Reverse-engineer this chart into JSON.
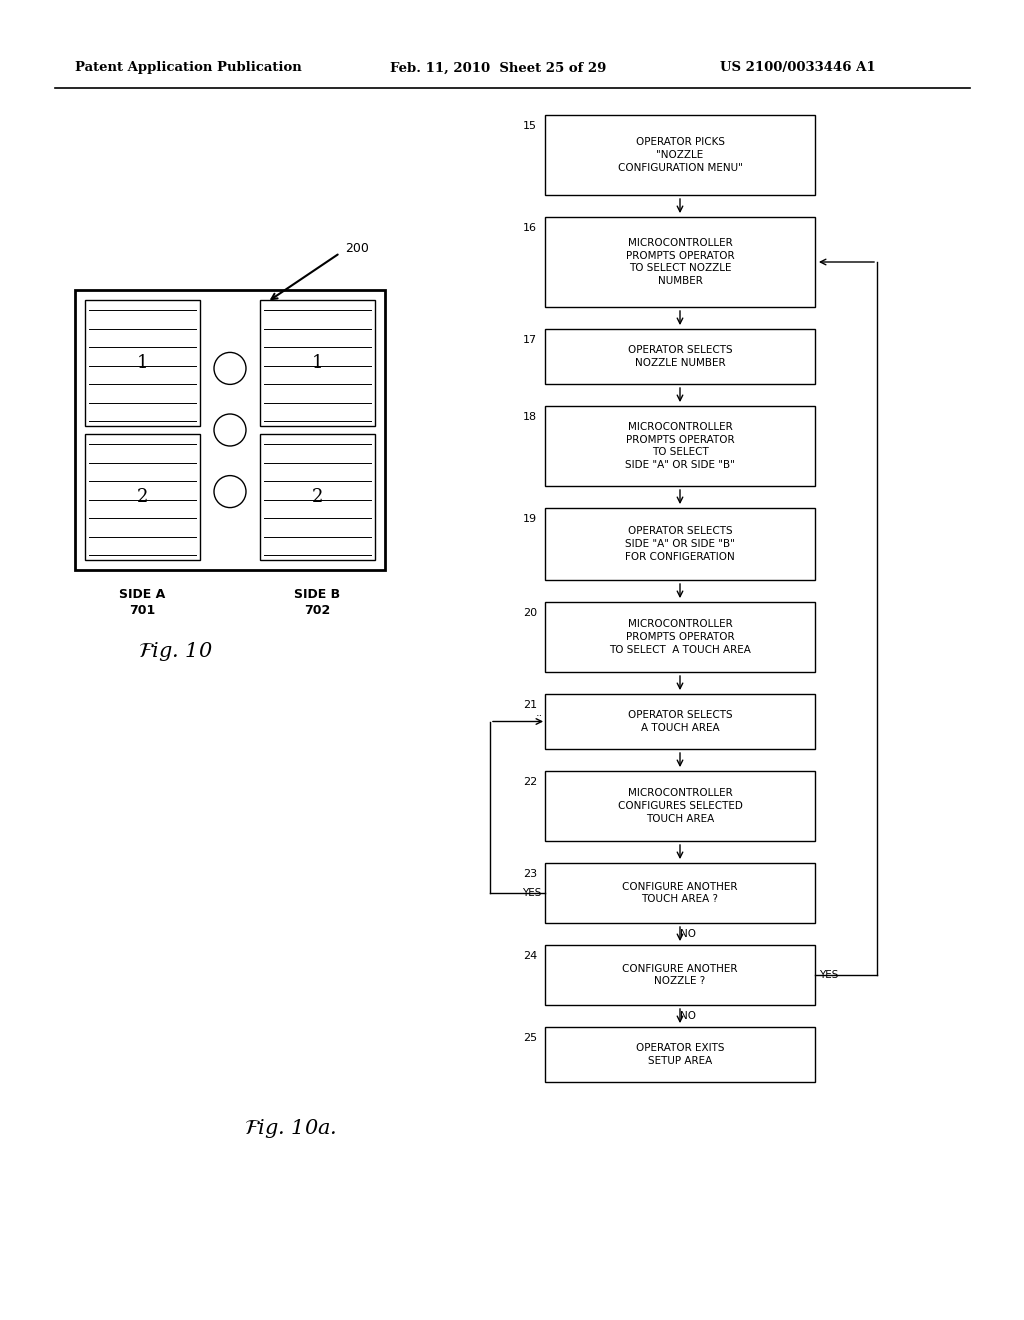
{
  "header_left": "Patent Application Publication",
  "header_mid": "Feb. 11, 2010  Sheet 25 of 29",
  "header_right": "US 2100/0033446 A1",
  "flowchart_steps": [
    {
      "num": "15",
      "text": "OPERATOR PICKS\n\"NOZZLE\nCONFIGURATION MENU\""
    },
    {
      "num": "16",
      "text": "MICROCONTROLLER\nPROMPTS OPERATOR\nTO SELECT NOZZLE\nNUMBER"
    },
    {
      "num": "17",
      "text": "OPERATOR SELECTS\nNOZZLE NUMBER"
    },
    {
      "num": "18",
      "text": "MICROCONTROLLER\nPROMPTS OPERATOR\nTO SELECT\nSIDE \"A\" OR SIDE \"B\""
    },
    {
      "num": "19",
      "text": "OPERATOR SELECTS\nSIDE \"A\" OR SIDE \"B\"\nFOR CONFIGERATION"
    },
    {
      "num": "20",
      "text": "MICROCONTROLLER\nPROMPTS OPERATOR\nTO SELECT  A TOUCH AREA"
    },
    {
      "num": "21",
      "text": "OPERATOR SELECTS\nA TOUCH AREA"
    },
    {
      "num": "22",
      "text": "MICROCONTROLLER\nCONFIGURES SELECTED\nTOUCH AREA"
    },
    {
      "num": "23",
      "text": "CONFIGURE ANOTHER\nTOUCH AREA ?"
    },
    {
      "num": "24",
      "text": "CONFIGURE ANOTHER\nNOZZLE ?"
    },
    {
      "num": "25",
      "text": "OPERATOR EXITS\nSETUP AREA"
    }
  ]
}
